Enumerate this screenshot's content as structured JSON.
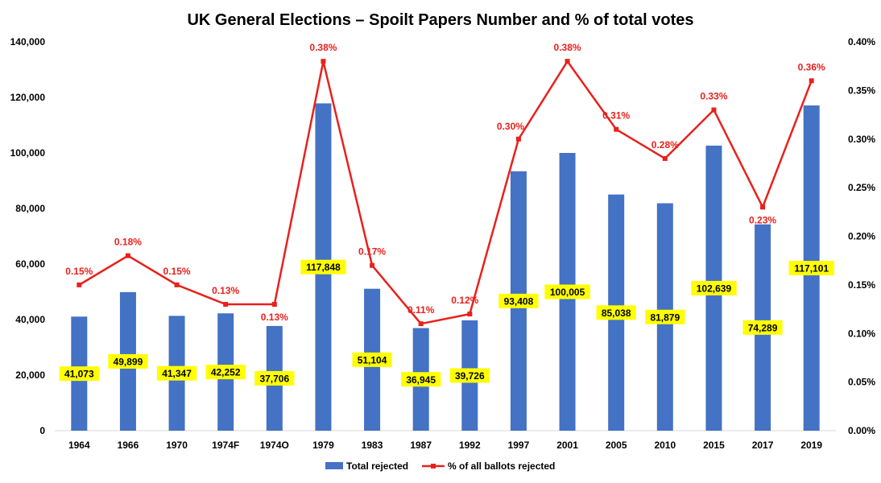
{
  "chart_data": {
    "type": "bar+line",
    "title": "UK General Elections – Spoilt Papers Number and % of total votes",
    "categories": [
      "1964",
      "1966",
      "1970",
      "1974F",
      "1974O",
      "1979",
      "1983",
      "1987",
      "1992",
      "1997",
      "2001",
      "2005",
      "2010",
      "2015",
      "2017",
      "2019"
    ],
    "series": [
      {
        "name": "Total rejected",
        "type": "bar",
        "axis": "left",
        "color": "#4472c4",
        "values": [
          41073,
          49899,
          41347,
          42252,
          37706,
          117848,
          51104,
          36945,
          39726,
          93408,
          100005,
          85038,
          81879,
          102639,
          74289,
          117101
        ],
        "labels": [
          "41,073",
          "49,899",
          "41,347",
          "42,252",
          "37,706",
          "117,848",
          "51,104",
          "36,945",
          "39,726",
          "93,408",
          "100,005",
          "85,038",
          "81,879",
          "102,639",
          "74,289",
          "117,101"
        ]
      },
      {
        "name": "% of all ballots rejected",
        "type": "line",
        "axis": "right",
        "color": "#e8211c",
        "values": [
          0.15,
          0.18,
          0.15,
          0.13,
          0.13,
          0.38,
          0.17,
          0.11,
          0.12,
          0.3,
          0.38,
          0.31,
          0.28,
          0.33,
          0.23,
          0.36
        ],
        "labels": [
          "0.15%",
          "0.18%",
          "0.15%",
          "0.13%",
          "0.13%",
          "0.38%",
          "0.17%",
          "0.11%",
          "0.12%",
          "0.30%",
          "0.38%",
          "0.31%",
          "0.28%",
          "0.33%",
          "0.23%",
          "0.36%"
        ]
      }
    ],
    "y_left": {
      "min": 0,
      "max": 140000,
      "ticks": [
        0,
        20000,
        40000,
        60000,
        80000,
        100000,
        120000,
        140000
      ],
      "tick_labels": [
        "0",
        "20,000",
        "40,000",
        "60,000",
        "80,000",
        "100,000",
        "120,000",
        "140,000"
      ]
    },
    "y_right": {
      "min": 0,
      "max": 0.4,
      "ticks": [
        0,
        0.05,
        0.1,
        0.15,
        0.2,
        0.25,
        0.3,
        0.35,
        0.4
      ],
      "tick_labels": [
        "0.00%",
        "0.05%",
        "0.10%",
        "0.15%",
        "0.20%",
        "0.25%",
        "0.30%",
        "0.35%",
        "0.40%"
      ]
    },
    "xlabel": "",
    "ylabel": "",
    "grid": false,
    "legend": "bottom",
    "bar_label_background": "#ffff00"
  }
}
